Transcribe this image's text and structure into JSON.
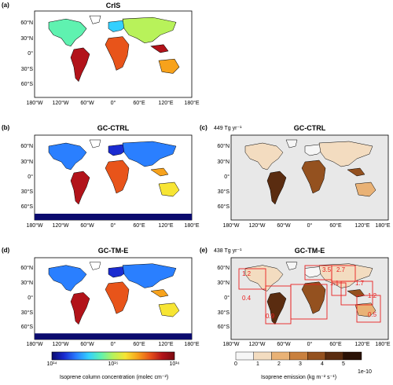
{
  "panels": [
    {
      "id": "a",
      "label": "(a)",
      "title": "CrIS",
      "total": "",
      "type": "column"
    },
    {
      "id": "b",
      "label": "(b)",
      "title": "GC-CTRL",
      "total": "",
      "type": "column"
    },
    {
      "id": "c",
      "label": "(c)",
      "title": "GC-CTRL",
      "total": "449 Tg yr⁻¹",
      "type": "emission"
    },
    {
      "id": "d",
      "label": "(d)",
      "title": "GC-TM-E",
      "total": "",
      "type": "column"
    },
    {
      "id": "e",
      "label": "(e)",
      "title": "GC-TM-E",
      "total": "438 Tg yr⁻¹",
      "type": "emission"
    }
  ],
  "lat_labels": [
    "60°N",
    "30°N",
    "0°",
    "30°S",
    "60°S"
  ],
  "lon_labels": [
    "180°W",
    "120°W",
    "60°W",
    "0°",
    "60°E",
    "120°E",
    "180°E"
  ],
  "region_factors": [
    "1.2",
    "3.5",
    "2.7",
    "1.1",
    "1.7",
    "0.4",
    "1.2",
    "0.9",
    "0.5"
  ],
  "colorbar_column": {
    "ticks": [
      "10¹⁴",
      "10¹⁵",
      "10¹⁶"
    ],
    "label": "Isoprene column concentration (molec cm⁻²)",
    "colors": [
      "#0b0b6e",
      "#1a2bd0",
      "#2a7fff",
      "#33d0ff",
      "#5ff2b0",
      "#b8f25a",
      "#f7e534",
      "#f7a21c",
      "#e8541a",
      "#b2131a",
      "#7a0a10"
    ]
  },
  "colorbar_emission": {
    "ticks": [
      "0",
      "1",
      "2",
      "3",
      "4",
      "5"
    ],
    "label": "Isoprene emission (kg m⁻² s⁻¹)",
    "multiplier": "1e-10",
    "colors": [
      "#f6f6f6",
      "#f3dcc0",
      "#e9b276",
      "#c9803e",
      "#94511f",
      "#5a2c10",
      "#2a1206"
    ]
  },
  "colors": {
    "ocean_column_a": "#ffffff",
    "ocean_column_bd": "#ffffff",
    "ocean_emission": "#e8e8e8",
    "region_box": "#e82020"
  }
}
